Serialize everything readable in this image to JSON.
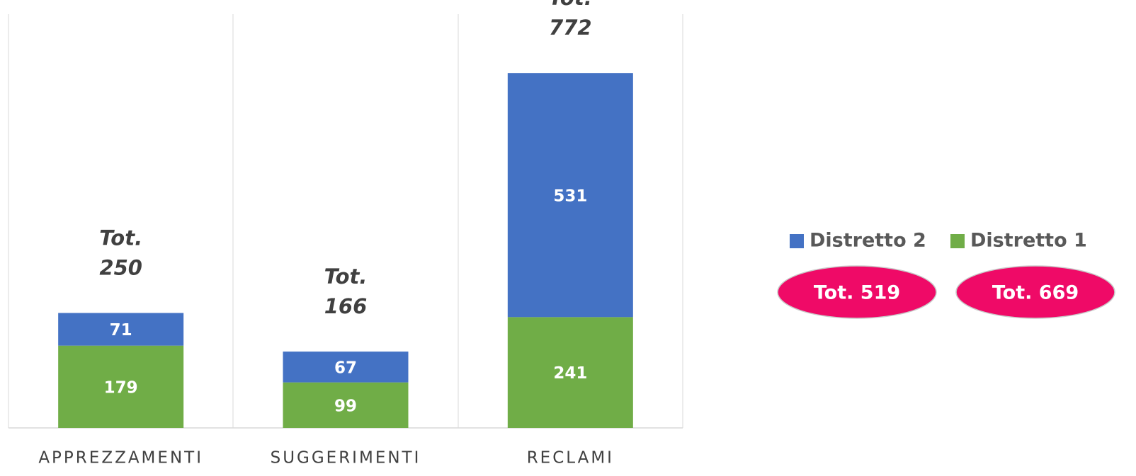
{
  "chart_data": {
    "type": "stacked_bar",
    "categories": [
      "APPREZZAMENTI",
      "SUGGERIMENTI",
      "RECLAMI"
    ],
    "series": [
      {
        "name": "Distretto 1",
        "color": "#70ad47",
        "values": [
          179,
          99,
          241
        ]
      },
      {
        "name": "Distretto 2",
        "color": "#4472c4",
        "values": [
          71,
          67,
          531
        ]
      }
    ],
    "totals": [
      {
        "prefix": "Tot.",
        "value": 250
      },
      {
        "prefix": "Tot.",
        "value": 166
      },
      {
        "prefix": "Tot.",
        "value": 772
      }
    ],
    "badges": [
      "Tot. 519",
      "Tot. 669"
    ],
    "badge_color": "#ef0a67",
    "ylim": [
      0,
      900
    ]
  }
}
